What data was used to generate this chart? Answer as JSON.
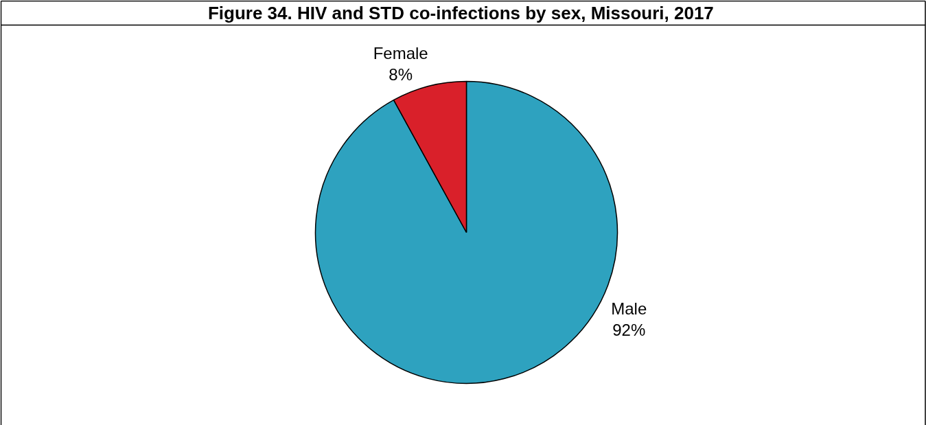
{
  "chart_data": {
    "type": "pie",
    "title": "Figure 34.  HIV and STD co-infections by sex, Missouri, 2017",
    "categories": [
      "Male",
      "Female"
    ],
    "values": [
      92,
      8
    ],
    "value_labels": [
      "92%",
      "8%"
    ],
    "colors": [
      "#2ea2bf",
      "#d9202a"
    ]
  }
}
